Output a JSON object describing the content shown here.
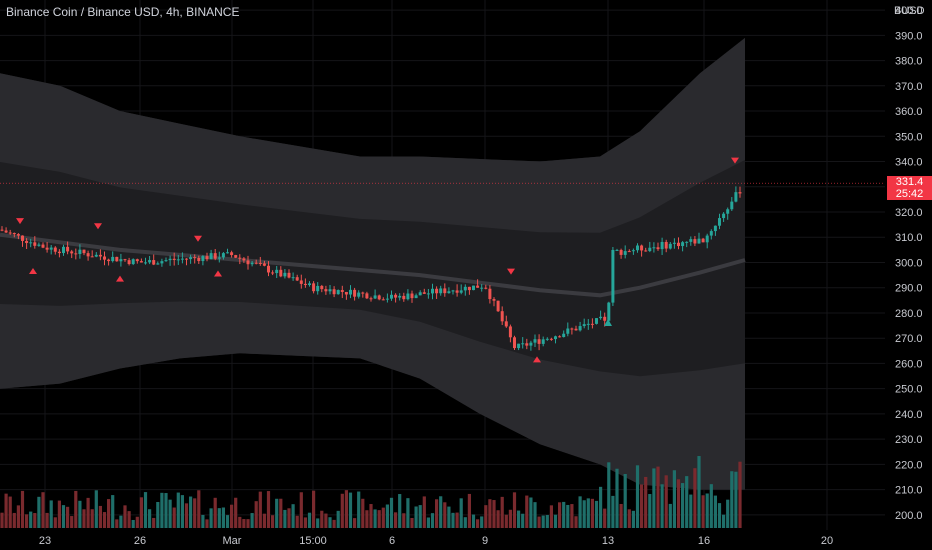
{
  "chart_title": "Binance Coin / Binance USD, 4h, BINANCE",
  "currency": "BUSD",
  "last_price": "331.4",
  "countdown": "25:42",
  "colors": {
    "background": "#000000",
    "up": "#26a69a",
    "down": "#ef5350",
    "volume_up": "#1f6f6a",
    "volume_down": "#7a2a2e",
    "band_outer": "#2a2a2e",
    "band_inner": "#1e1e21",
    "ma_line": "#3b3b40",
    "marker": "#f23645",
    "marker_up": "#26a69a",
    "grid": "#151518",
    "axis_text": "#c8cad0",
    "price_tag": "#f23645"
  },
  "chart_data": {
    "type": "candlestick",
    "title": "Binance Coin / Binance USD, 4h, BINANCE",
    "ylabel": "BUSD",
    "y_ticks": [
      200,
      210,
      220,
      230,
      240,
      250,
      260,
      270,
      280,
      290,
      300,
      310,
      320,
      330,
      340,
      350,
      360,
      370,
      380,
      390,
      400
    ],
    "ylim": [
      194,
      404
    ],
    "x_ticks": [
      "23",
      "26",
      "Mar",
      "15:00",
      "6",
      "9",
      "13",
      "16",
      "20"
    ],
    "key_points": [
      {
        "x": "21 Feb",
        "close": 313
      },
      {
        "x": "23",
        "close": 306
      },
      {
        "x": "26",
        "close": 300
      },
      {
        "x": "Mar",
        "close": 303
      },
      {
        "x": "15:00",
        "close": 290
      },
      {
        "x": "6",
        "close": 286
      },
      {
        "x": "9",
        "close": 291
      },
      {
        "x": "10",
        "close": 266
      },
      {
        "x": "13",
        "close": 278
      },
      {
        "x": "13",
        "close": 304
      },
      {
        "x": "16",
        "close": 309
      },
      {
        "x": "17",
        "close": 331.4
      }
    ],
    "upper_band": [
      375,
      370,
      360,
      355,
      350,
      346,
      342,
      342,
      341,
      340,
      342,
      352,
      375,
      389
    ],
    "lower_band": [
      250,
      252,
      258,
      262,
      264,
      263,
      262,
      254,
      240,
      228,
      220,
      212,
      210,
      210
    ],
    "moving_average": [
      311,
      308,
      305,
      303,
      301,
      299,
      297,
      295,
      292,
      289,
      287,
      290,
      296,
      301
    ]
  }
}
